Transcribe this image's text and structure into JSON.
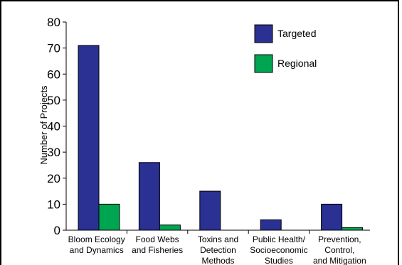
{
  "chart_data": {
    "type": "bar",
    "ylabel": "Number of Projects",
    "ylim": [
      0,
      80
    ],
    "yticks": [
      0,
      10,
      20,
      30,
      40,
      50,
      60,
      70,
      80
    ],
    "categories": [
      [
        "Bloom Ecology",
        "and Dynamics"
      ],
      [
        "Food Webs",
        "and Fisheries"
      ],
      [
        "Toxins and",
        "Detection",
        "Methods"
      ],
      [
        "Public Health/",
        "Socioeconomic",
        "Studies"
      ],
      [
        "Prevention,",
        "Control,",
        "and Mitigation"
      ]
    ],
    "series": [
      {
        "name": "Targeted",
        "color": "#2a3192",
        "values": [
          71,
          26,
          15,
          4,
          10
        ]
      },
      {
        "name": "Regional",
        "color": "#00a551",
        "values": [
          10,
          2,
          0,
          0,
          1
        ]
      }
    ],
    "legend_position": "top-right",
    "grid": false
  }
}
